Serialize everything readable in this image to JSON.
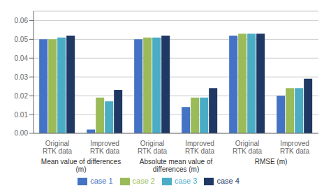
{
  "chart_data": {
    "type": "bar",
    "sections": [
      {
        "label": "Mean value of differences\n(m)",
        "categories": [
          "Original\nRTK data",
          "Improved\nRTK data"
        ]
      },
      {
        "label": "Absolute mean value of\ndifferences (m)",
        "categories": [
          "Original\nRTK data",
          "Improved\nRTK data"
        ]
      },
      {
        "label": "RMSE (m)",
        "categories": [
          "Original\nRTK data",
          "Improved\nRTK data"
        ]
      }
    ],
    "series": [
      {
        "name": "case 1",
        "color": "#4472C4",
        "values": [
          0.05,
          0.002,
          0.05,
          0.014,
          0.052,
          0.02
        ]
      },
      {
        "name": "case 2",
        "color": "#9BBB59",
        "values": [
          0.05,
          0.019,
          0.051,
          0.019,
          0.053,
          0.024
        ]
      },
      {
        "name": "case 3",
        "color": "#4BACC6",
        "values": [
          0.051,
          0.017,
          0.051,
          0.019,
          0.053,
          0.024
        ]
      },
      {
        "name": "case 4",
        "color": "#1F3864",
        "values": [
          0.052,
          0.023,
          0.052,
          0.024,
          0.053,
          0.029
        ]
      }
    ],
    "ylim": [
      0,
      0.065
    ],
    "yticks": [
      {
        "value": 0,
        "label": "0.00"
      },
      0.01,
      0.02,
      0.03,
      0.04,
      0.05,
      0.06
    ],
    "grid": true,
    "legend": "bottom"
  }
}
